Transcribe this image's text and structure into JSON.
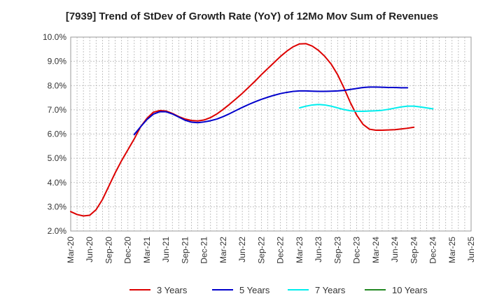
{
  "chart_data": {
    "type": "line",
    "title": "[7939]  Trend of StDev of Growth Rate (YoY) of 12Mo Mov Sum of Revenues",
    "xlabel": "",
    "ylabel": "",
    "ylim": [
      2.0,
      10.0
    ],
    "yticks": [
      "10.0%",
      "9.0%",
      "8.0%",
      "7.0%",
      "6.0%",
      "5.0%",
      "4.0%",
      "3.0%",
      "2.0%"
    ],
    "x_categories": [
      "Mar-20",
      "Jun-20",
      "Sep-20",
      "Dec-20",
      "Mar-21",
      "Jun-21",
      "Sep-21",
      "Dec-21",
      "Mar-22",
      "Jun-22",
      "Sep-22",
      "Dec-22",
      "Mar-23",
      "Jun-23",
      "Sep-23",
      "Dec-23",
      "Mar-24",
      "Jun-24",
      "Sep-24",
      "Dec-24",
      "Mar-25",
      "Jun-25"
    ],
    "grid": true,
    "legend_position": "bottom",
    "series": [
      {
        "name": "3 Years",
        "color": "#dd0000",
        "start_index": 0,
        "values": [
          2.8,
          2.68,
          2.62,
          2.65,
          2.88,
          3.3,
          3.85,
          4.4,
          4.9,
          5.35,
          5.8,
          6.3,
          6.65,
          6.9,
          6.97,
          6.95,
          6.85,
          6.72,
          6.62,
          6.56,
          6.54,
          6.58,
          6.68,
          6.83,
          7.02,
          7.23,
          7.45,
          7.68,
          7.93,
          8.18,
          8.45,
          8.7,
          8.95,
          9.2,
          9.42,
          9.6,
          9.72,
          9.73,
          9.63,
          9.45,
          9.2,
          8.88,
          8.45,
          7.9,
          7.3,
          6.78,
          6.4,
          6.2,
          6.16,
          6.16,
          6.17,
          6.18,
          6.21,
          6.24,
          6.28
        ]
      },
      {
        "name": "5 Years",
        "color": "#0000cc",
        "start_index": 10,
        "values": [
          5.98,
          6.3,
          6.6,
          6.82,
          6.92,
          6.92,
          6.83,
          6.7,
          6.57,
          6.49,
          6.47,
          6.5,
          6.55,
          6.62,
          6.72,
          6.84,
          6.97,
          7.1,
          7.22,
          7.33,
          7.43,
          7.52,
          7.6,
          7.67,
          7.72,
          7.76,
          7.78,
          7.78,
          7.77,
          7.76,
          7.76,
          7.77,
          7.78,
          7.8,
          7.84,
          7.88,
          7.92,
          7.94,
          7.94,
          7.93,
          7.92,
          7.92,
          7.91,
          7.91
        ]
      },
      {
        "name": "7 Years",
        "color": "#00eeee",
        "start_index": 36,
        "values": [
          7.08,
          7.15,
          7.2,
          7.22,
          7.2,
          7.15,
          7.08,
          7.01,
          6.96,
          6.94,
          6.94,
          6.95,
          6.96,
          6.98,
          7.02,
          7.07,
          7.12,
          7.15,
          7.15,
          7.12,
          7.08,
          7.04
        ]
      },
      {
        "name": "10 Years",
        "color": "#228822",
        "start_index": 0,
        "values": []
      }
    ]
  }
}
